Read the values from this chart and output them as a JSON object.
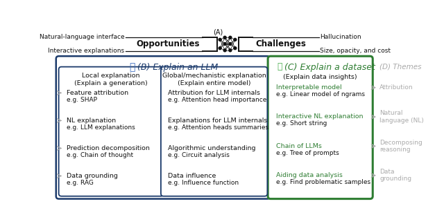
{
  "title_A": "(A)",
  "opp_label": "Opportunities",
  "chal_label": "Challenges",
  "opp_left": "Natural-language interface",
  "opp_right": "Hallucination",
  "chal_left": "Interactive explanations",
  "chal_right": "Size, opacity, and cost",
  "section_B_title": "(B) Explain an LLM",
  "section_C_title": "(C) Explain a dataset",
  "section_D_title": "(D) Themes",
  "local_col_title": "Local explanation\n(Explain a generation)",
  "global_col_title": "Global/mechanistic explanation\n(Explain entire model)",
  "dataset_col_title": "(Explain data insights)",
  "local_items": [
    [
      "Feature attribution",
      "e.g. SHAP"
    ],
    [
      "NL explanation",
      "e.g. LLM explanations"
    ],
    [
      "Prediction decomposition",
      "e.g. Chain of thought"
    ],
    [
      "Data grounding",
      "e.g. RAG"
    ]
  ],
  "global_items": [
    [
      "Attribution for LLM internals",
      "e.g. Attention head importance"
    ],
    [
      "Explanations for LLM internals",
      "e.g. Attention heads summaries"
    ],
    [
      "Algorithmic understanding",
      "e.g. Circuit analysis"
    ],
    [
      "Data influence",
      "e.g. Influence function"
    ]
  ],
  "dataset_items": [
    [
      "Interpretable model",
      "e.g. Linear model of ngrams"
    ],
    [
      "Interactive NL explanation",
      "e.g. Short string"
    ],
    [
      "Chain of LLMs",
      "e.g. Tree of prompts"
    ],
    [
      "Aiding data analysis",
      "e.g. Find problematic samples"
    ]
  ],
  "themes": [
    "Attribution",
    "Natural\nlanguage (NL)",
    "Decomposing\nreasoning",
    "Data\ngrounding"
  ],
  "blue": "#1b3a6b",
  "green": "#2e7d32",
  "gray": "#aaaaaa",
  "black": "#111111",
  "white": "#ffffff"
}
